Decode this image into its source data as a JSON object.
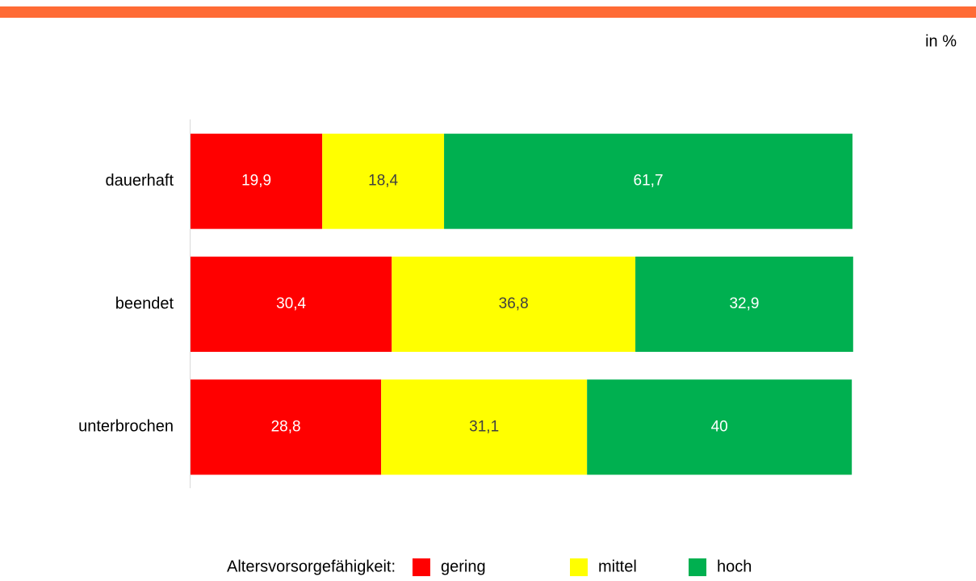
{
  "chart_data": {
    "type": "stacked-bar-horizontal",
    "unit": "in %",
    "legend_title": "Altersvorsorgefähigkeit:",
    "categories": [
      "dauerhaft",
      "beendet",
      "unterbrochen"
    ],
    "series": [
      {
        "name": "gering",
        "color": "#ff0000",
        "values": [
          19.9,
          30.4,
          28.8
        ],
        "value_labels": [
          "19,9",
          "30,4",
          "28,8"
        ]
      },
      {
        "name": "mittel",
        "color": "#ffff00",
        "values": [
          18.4,
          36.8,
          31.1
        ],
        "value_labels": [
          "18,4",
          "36,8",
          "31,1"
        ]
      },
      {
        "name": "hoch",
        "color": "#00b050",
        "values": [
          61.7,
          32.9,
          40
        ],
        "value_labels": [
          "61,7",
          "32,9",
          "40"
        ]
      }
    ],
    "xlim": [
      0,
      100
    ],
    "legend": "bottom"
  }
}
